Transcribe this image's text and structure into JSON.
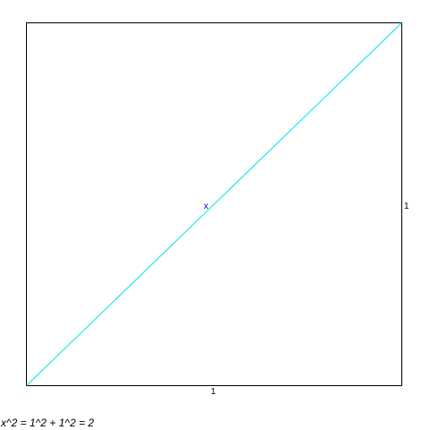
{
  "square": {
    "side_bottom_label": "1",
    "side_right_label": "1",
    "border_color": "#000000"
  },
  "diagonal": {
    "color": "#00e5e5"
  },
  "midpoint": {
    "label": "x",
    "color": "#0000cc"
  },
  "equation": {
    "text": "x^2 = 1^2 + 1^2 = 2"
  }
}
